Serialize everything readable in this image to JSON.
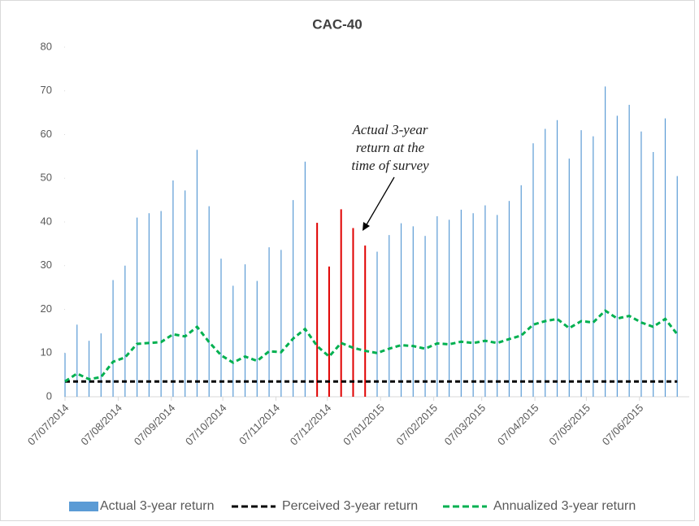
{
  "chart_data": {
    "type": "bar_line",
    "title": "CAC-40",
    "x": [
      "07/07/2014",
      "14/07/2014",
      "21/07/2014",
      "28/07/2014",
      "04/08/2014",
      "11/08/2014",
      "18/08/2014",
      "25/08/2014",
      "01/09/2014",
      "08/09/2014",
      "15/09/2014",
      "22/09/2014",
      "29/09/2014",
      "06/10/2014",
      "13/10/2014",
      "20/10/2014",
      "27/10/2014",
      "03/11/2014",
      "10/11/2014",
      "17/11/2014",
      "24/11/2014",
      "01/12/2014",
      "08/12/2014",
      "15/12/2014",
      "22/12/2014",
      "29/12/2014",
      "05/01/2015",
      "12/01/2015",
      "19/01/2015",
      "26/01/2015",
      "02/02/2015",
      "09/02/2015",
      "16/02/2015",
      "23/02/2015",
      "02/03/2015",
      "09/03/2015",
      "16/03/2015",
      "23/03/2015",
      "30/03/2015",
      "06/04/2015",
      "13/04/2015",
      "20/04/2015",
      "27/04/2015",
      "04/05/2015",
      "11/05/2015",
      "18/05/2015",
      "25/05/2015",
      "01/06/2015",
      "08/06/2015",
      "15/06/2015",
      "22/06/2015",
      "29/06/2015"
    ],
    "xlim": [
      "07/07/2014",
      "06/07/2015"
    ],
    "xticks": [
      "07/07/2014",
      "07/08/2014",
      "07/09/2014",
      "07/10/2014",
      "07/11/2014",
      "07/12/2014",
      "07/01/2015",
      "07/02/2015",
      "07/03/2015",
      "07/04/2015",
      "07/05/2015",
      "07/06/2015"
    ],
    "ylim": [
      0,
      80
    ],
    "yticks": [
      0,
      10,
      20,
      30,
      40,
      50,
      60,
      70,
      80
    ],
    "series": [
      {
        "name": "Actual 3-year return",
        "kind": "bar",
        "color": "#5b9bd5",
        "highlight_color": "#e00000",
        "highlight": [
          21,
          22,
          23,
          24,
          25
        ],
        "values": [
          10,
          16.5,
          12.8,
          14.5,
          26.7,
          30,
          41,
          42,
          42.5,
          49.5,
          47.2,
          56.5,
          43.6,
          31.6,
          25.4,
          30.3,
          26.5,
          34.2,
          33.6,
          45,
          53.8,
          39.8,
          29.8,
          42.9,
          38.6,
          34.6,
          33.2,
          37,
          39.7,
          39,
          36.8,
          41.3,
          40.5,
          42.8,
          42,
          43.8,
          41.6,
          44.8,
          48.4,
          58,
          61.3,
          63.3,
          54.5,
          61,
          59.6,
          71,
          64.3,
          66.8,
          60.7,
          56,
          63.7,
          50.5
        ]
      },
      {
        "name": "Perceived 3-year return",
        "kind": "line",
        "color": "#000000",
        "values": [
          3.5,
          3.5,
          3.5,
          3.5,
          3.5,
          3.5,
          3.5,
          3.5,
          3.5,
          3.5,
          3.5,
          3.5,
          3.5,
          3.5,
          3.5,
          3.5,
          3.5,
          3.5,
          3.5,
          3.5,
          3.5,
          3.5,
          3.5,
          3.5,
          3.5,
          3.5,
          3.5,
          3.5,
          3.5,
          3.5,
          3.5,
          3.5,
          3.5,
          3.5,
          3.5,
          3.5,
          3.5,
          3.5,
          3.5,
          3.5,
          3.5,
          3.5,
          3.5,
          3.5,
          3.5,
          3.5,
          3.5,
          3.5,
          3.5,
          3.5,
          3.5,
          3.5
        ]
      },
      {
        "name": "Annualized 3-year return",
        "kind": "line",
        "color": "#00b050",
        "values": [
          3.5,
          5.3,
          4,
          4.5,
          8,
          9,
          12.1,
          12.3,
          12.5,
          14.3,
          13.8,
          16,
          12.5,
          9.5,
          7.8,
          9.2,
          8.2,
          10.4,
          10.2,
          13.3,
          15.5,
          11.6,
          9.2,
          12.3,
          11.2,
          10.5,
          10,
          11,
          11.8,
          11.6,
          11,
          12.2,
          12,
          12.6,
          12.3,
          12.8,
          12.3,
          13.2,
          14,
          16.5,
          17.3,
          17.8,
          15.7,
          17.3,
          17,
          19.7,
          17.9,
          18.5,
          17,
          16,
          17.8,
          14.3
        ]
      }
    ],
    "annotation": {
      "text": [
        "Actual 3-year",
        "return at the",
        "time of survey"
      ]
    }
  }
}
